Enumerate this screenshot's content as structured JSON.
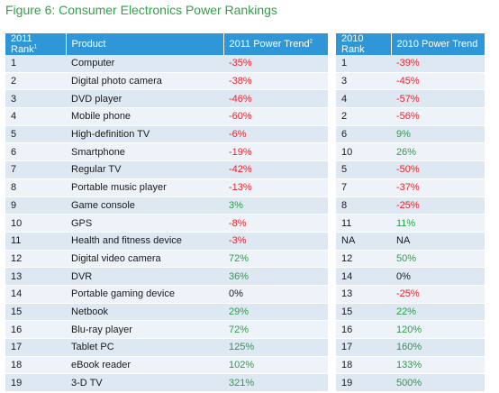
{
  "title": "Figure 6: Consumer Electronics Power Rankings",
  "table_2011": {
    "headers": {
      "rank": "2011 Rank",
      "rank_note": "1",
      "product": "Product",
      "trend": "2011 Power Trend",
      "trend_note": "2"
    },
    "rows": [
      {
        "rank": "1",
        "product": "Computer",
        "trend": "-35%",
        "sign": "neg"
      },
      {
        "rank": "2",
        "product": "Digital photo camera",
        "trend": "-38%",
        "sign": "neg"
      },
      {
        "rank": "3",
        "product": "DVD player",
        "trend": "-46%",
        "sign": "neg"
      },
      {
        "rank": "4",
        "product": "Mobile phone",
        "trend": "-60%",
        "sign": "neg"
      },
      {
        "rank": "5",
        "product": "High-definition TV",
        "trend": "-6%",
        "sign": "neg"
      },
      {
        "rank": "6",
        "product": "Smartphone",
        "trend": "-19%",
        "sign": "neg"
      },
      {
        "rank": "7",
        "product": "Regular TV",
        "trend": "-42%",
        "sign": "neg"
      },
      {
        "rank": "8",
        "product": "Portable music player",
        "trend": "-13%",
        "sign": "neg"
      },
      {
        "rank": "9",
        "product": "Game console",
        "trend": "3%",
        "sign": "pos"
      },
      {
        "rank": "10",
        "product": "GPS",
        "trend": "-8%",
        "sign": "neg"
      },
      {
        "rank": "11",
        "product": "Health and fitness device",
        "trend": "-3%",
        "sign": "neg"
      },
      {
        "rank": "12",
        "product": "Digital video camera",
        "trend": "72%",
        "sign": "pos"
      },
      {
        "rank": "13",
        "product": "DVR",
        "trend": "36%",
        "sign": "pos"
      },
      {
        "rank": "14",
        "product": "Portable gaming device",
        "trend": "0%",
        "sign": "neu"
      },
      {
        "rank": "15",
        "product": "Netbook",
        "trend": "29%",
        "sign": "pos"
      },
      {
        "rank": "16",
        "product": "Blu-ray player",
        "trend": "72%",
        "sign": "pos"
      },
      {
        "rank": "17",
        "product": "Tablet PC",
        "trend": "125%",
        "sign": "pos"
      },
      {
        "rank": "18",
        "product": "eBook reader",
        "trend": "102%",
        "sign": "pos"
      },
      {
        "rank": "19",
        "product": "3-D TV",
        "trend": "321%",
        "sign": "pos"
      }
    ]
  },
  "table_2010": {
    "headers": {
      "rank": "2010 Rank",
      "trend": "2010 Power Trend"
    },
    "rows": [
      {
        "rank": "1",
        "trend": "-39%",
        "sign": "neg"
      },
      {
        "rank": "3",
        "trend": "-45%",
        "sign": "neg"
      },
      {
        "rank": "4",
        "trend": "-57%",
        "sign": "neg"
      },
      {
        "rank": "2",
        "trend": "-56%",
        "sign": "neg"
      },
      {
        "rank": "6",
        "trend": "9%",
        "sign": "pos"
      },
      {
        "rank": "10",
        "trend": "26%",
        "sign": "pos"
      },
      {
        "rank": "5",
        "trend": "-50%",
        "sign": "neg"
      },
      {
        "rank": "7",
        "trend": "-37%",
        "sign": "neg"
      },
      {
        "rank": "8",
        "trend": "-25%",
        "sign": "neg"
      },
      {
        "rank": "11",
        "trend": "11%",
        "sign": "pos"
      },
      {
        "rank": "NA",
        "trend": "NA",
        "sign": "neu"
      },
      {
        "rank": "12",
        "trend": "50%",
        "sign": "pos"
      },
      {
        "rank": "14",
        "trend": "0%",
        "sign": "neu"
      },
      {
        "rank": "13",
        "trend": "-25%",
        "sign": "neg"
      },
      {
        "rank": "15",
        "trend": "22%",
        "sign": "pos"
      },
      {
        "rank": "16",
        "trend": "120%",
        "sign": "pos"
      },
      {
        "rank": "17",
        "trend": "160%",
        "sign": "pos"
      },
      {
        "rank": "18",
        "trend": "133%",
        "sign": "pos"
      },
      {
        "rank": "19",
        "trend": "500%",
        "sign": "pos"
      }
    ]
  },
  "colors": {
    "title": "#2fa24a",
    "header_bg": "#2f97d8",
    "negative": "#e2262b",
    "positive": "#27a045",
    "row_odd": "#dde8f3",
    "row_even": "#eef3f9"
  }
}
